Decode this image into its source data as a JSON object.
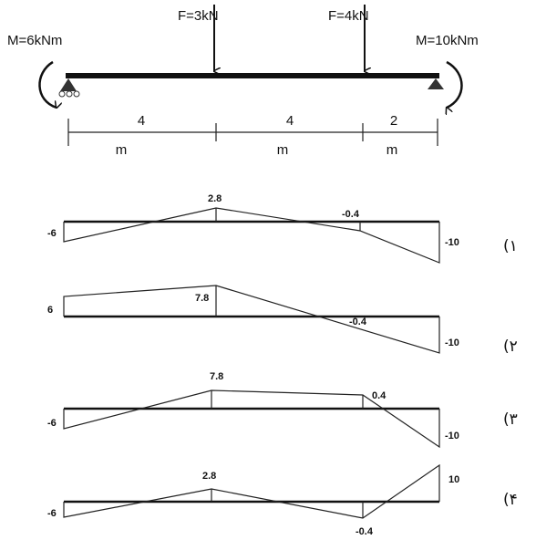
{
  "beam": {
    "loads": [
      "M=6kNm",
      "F=3kN",
      "F=4kN",
      "M=10kNm"
    ],
    "spans": [
      {
        "length": "4",
        "unit": "m"
      },
      {
        "length": "4",
        "unit": "m"
      },
      {
        "length": "2",
        "unit": "m"
      }
    ]
  },
  "options": [
    {
      "marker": "(۱",
      "labels": [
        "-6",
        "2.8",
        "-0.4",
        "-10"
      ]
    },
    {
      "marker": "(۲",
      "labels": [
        "6",
        "7.8",
        "-0.4",
        "-10"
      ]
    },
    {
      "marker": "(۳",
      "labels": [
        "-6",
        "7.8",
        "0.4",
        "-10"
      ]
    },
    {
      "marker": "(۴",
      "labels": [
        "-6",
        "2.8",
        "-0.4",
        "10"
      ]
    }
  ]
}
